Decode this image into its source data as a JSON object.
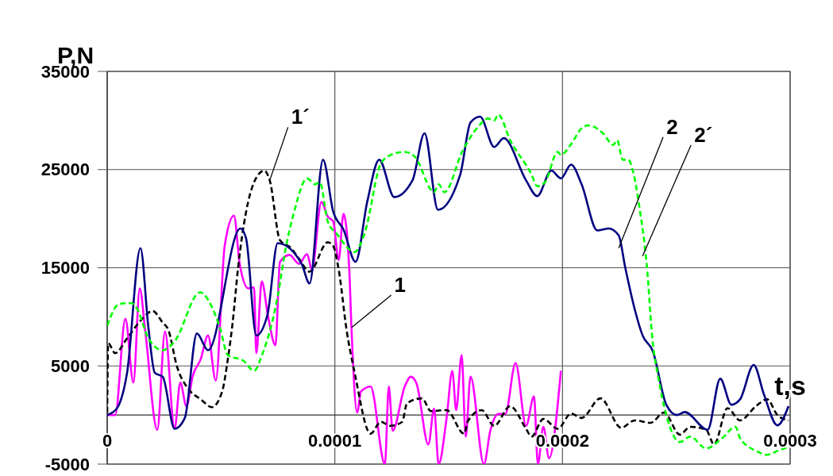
{
  "chart_data": {
    "type": "line",
    "xlabel": "t,s",
    "ylabel": "P,N",
    "xlim": [
      0,
      0.0003
    ],
    "ylim": [
      -5000,
      35000
    ],
    "xticks": [
      0,
      0.0001,
      0.0002,
      0.0003
    ],
    "yticks": [
      -5000,
      5000,
      15000,
      25000,
      35000
    ],
    "grid": true,
    "series": [
      {
        "color": "#ff00ff",
        "line_style": "solid",
        "x": [
          0,
          3.5e-06,
          8e-06,
          1.15e-05,
          1.43e-05,
          1.67e-05,
          2.2e-05,
          2.54e-05,
          2.96e-05,
          3.21e-05,
          3.48e-05,
          3.76e-05,
          4.11e-05,
          4.43e-05,
          4.77e-05,
          5.16e-05,
          5.57e-05,
          5.82e-05,
          6.2e-05,
          6.45e-05,
          6.55e-05,
          6.79e-05,
          7.07e-05,
          7.39e-05,
          7.59e-05,
          8.01e-05,
          8.43e-05,
          8.78e-05,
          8.99e-05,
          9.41e-05,
          9.69e-05,
          9.93e-05,
          0.0001017,
          0.0001038,
          0.0001063,
          0.0001073,
          0.0001098,
          0.0001115,
          0.0001157,
          0.000122,
          0.0001237,
          0.0001254,
          0.0001307,
          0.0001334,
          0.0001359,
          0.0001411,
          0.0001436,
          0.0001456,
          0.0001491,
          0.0001516,
          0.0001533,
          0.0001557,
          0.0001575,
          0.0001596,
          0.0001655,
          0.0001683,
          0.0001718,
          0.0001749,
          0.0001794,
          0.000184,
          0.0001875,
          0.0001892,
          0.0001916,
          0.0001941,
          0.0001993
        ],
        "values": [
          0,
          0,
          9800,
          3300,
          12900,
          8600,
          -1500,
          8500,
          -1400,
          3300,
          900,
          4000,
          5700,
          8100,
          3500,
          17200,
          20300,
          15400,
          12900,
          13000,
          6300,
          13600,
          10000,
          7100,
          15600,
          16300,
          15400,
          16400,
          14800,
          21700,
          20200,
          19700,
          15800,
          20500,
          15000,
          8900,
          250,
          2400,
          2900,
          -5000,
          2900,
          -1600,
          2900,
          3900,
          3200,
          -3000,
          650,
          -5000,
          -300,
          4500,
          500,
          6100,
          -2200,
          3900,
          -5000,
          -1600,
          100,
          100,
          5300,
          -1100,
          1900,
          -5000,
          -1200,
          -4400,
          4500
        ]
      },
      {
        "color": "#000000",
        "line_style": "dashed",
        "x": [
          0,
          4e-07,
          3.5e-06,
          8.7e-06,
          1.5e-05,
          1.99e-05,
          2.44e-05,
          2.68e-05,
          3.07e-05,
          3.55e-05,
          4.11e-05,
          4.6e-05,
          5.05e-05,
          5.3e-05,
          5.51e-05,
          5.75e-05,
          6.45e-05,
          6.9e-05,
          7.14e-05,
          7.59e-05,
          8.08e-05,
          8.43e-05,
          8.89e-05,
          9.69e-05,
          9.93e-05,
          0.0001017,
          0.0001052,
          0.0001087,
          0.0001157,
          0.0001202,
          0.0001244,
          0.0001296,
          0.0001317,
          0.0001383,
          0.0001422,
          0.0001491,
          0.0001568,
          0.0001585,
          0.0001645,
          0.00017,
          0.000177,
          0.000184,
          0.0001864,
          0.0001916,
          0.0001979,
          0.0002038,
          0.0002084,
          0.0002167,
          0.0002258,
          0.0002317,
          0.0002387,
          0.0002446,
          0.0002516,
          0.0002561,
          0.0002631,
          0.0002666,
          0.0002725,
          0.000278,
          0.000285,
          0.0002899,
          0.0002944,
          0.0002993
        ],
        "values": [
          250,
          7300,
          6300,
          7800,
          9700,
          10600,
          9400,
          8700,
          4900,
          2700,
          1600,
          800,
          2400,
          5700,
          9400,
          15000,
          23700,
          24900,
          23900,
          17800,
          17000,
          15900,
          14600,
          17600,
          17200,
          14800,
          8600,
          4300,
          -1900,
          -700,
          -1100,
          -700,
          1200,
          1700,
          400,
          500,
          -1900,
          -600,
          500,
          -1100,
          900,
          -1400,
          -2200,
          -400,
          -1400,
          150,
          -300,
          1700,
          -1300,
          -550,
          -800,
          250,
          -2000,
          -1200,
          -1500,
          -3000,
          700,
          -550,
          900,
          1600,
          0,
          -550
        ]
      },
      {
        "color": "#000080",
        "line_style": "solid",
        "x": [
          0,
          4.2e-06,
          8.7e-06,
          1.46e-05,
          1.81e-05,
          2.09e-05,
          2.44e-05,
          2.96e-05,
          3.41e-05,
          3.94e-05,
          4.43e-05,
          5.85e-05,
          6.1e-05,
          6.55e-05,
          7.04e-05,
          7.49e-05,
          8.54e-05,
          8.89e-05,
          9.48e-05,
          9.93e-05,
          0.0001038,
          0.0001091,
          0.0001143,
          0.0001195,
          0.0001261,
          0.0001341,
          0.0001394,
          0.0001453,
          0.0001551,
          0.0001596,
          0.0001638,
          0.00017,
          0.0001742,
          0.000184,
          0.0001889,
          0.0001951,
          0.0001993,
          0.0002038,
          0.0002084,
          0.0002153,
          0.0002202,
          0.0002247,
          0.0002275,
          0.0002317,
          0.0002352,
          0.0002397,
          0.0002456,
          0.0002502,
          0.0002537,
          0.0002638,
          0.0002693,
          0.0002742,
          0.000278,
          0.000284,
          0.0002885,
          0.0002944,
          0.0002993
        ],
        "values": [
          0,
          650,
          4250,
          17000,
          8900,
          4300,
          3900,
          -1400,
          -300,
          8300,
          6600,
          19000,
          18000,
          8100,
          10200,
          17500,
          15400,
          13400,
          26000,
          20700,
          18900,
          15600,
          21800,
          26000,
          22200,
          23900,
          28700,
          20900,
          24500,
          29800,
          30400,
          27300,
          28200,
          23900,
          22300,
          24900,
          24100,
          25500,
          23500,
          18800,
          19000,
          18300,
          15100,
          10800,
          8100,
          6500,
          1050,
          0,
          300,
          -1500,
          3700,
          1050,
          1600,
          5100,
          2100,
          -1050,
          900
        ]
      },
      {
        "color": "#00ff00",
        "line_style": "dashed",
        "x": [
          0,
          5.2e-06,
          1.05e-05,
          1.32e-05,
          1.81e-05,
          2.44e-05,
          2.96e-05,
          4.08e-05,
          4.6e-05,
          4.95e-05,
          5.3e-05,
          6e-05,
          6.45e-05,
          6.8e-05,
          7.49e-05,
          7.84e-05,
          8.19e-05,
          8.78e-05,
          9.13e-05,
          9.34e-05,
          9.69e-05,
          0.000101,
          0.0001087,
          0.0001132,
          0.0001202,
          0.0001247,
          0.0001307,
          0.0001352,
          0.0001436,
          0.0001456,
          0.0001481,
          0.0001561,
          0.0001631,
          0.0001672,
          0.00017,
          0.0001718,
          0.000177,
          0.0001864,
          0.0001889,
          0.0001923,
          0.0001979,
          0.0001993,
          0.0002038,
          0.0002084,
          0.0002115,
          0.0002178,
          0.0002223,
          0.000224,
          0.0002265,
          0.0002289,
          0.000231,
          0.0002341,
          0.0002369,
          0.0002397,
          0.0002422,
          0.0002456,
          0.0002516,
          0.0002561,
          0.0002631,
          0.00027,
          0.000276,
          0.000278,
          0.000285,
          0.0002899,
          0.0002955,
          0.0002993
        ],
        "values": [
          9100,
          11300,
          11400,
          10800,
          7800,
          6600,
          7500,
          12500,
          11000,
          8900,
          6100,
          5500,
          4500,
          6100,
          12100,
          17000,
          20500,
          24100,
          23500,
          23700,
          19700,
          18400,
          16600,
          18600,
          25600,
          26500,
          26800,
          26300,
          22700,
          23500,
          22700,
          26900,
          29400,
          30200,
          30000,
          30600,
          28000,
          24500,
          23300,
          23700,
          26800,
          26500,
          27600,
          29200,
          29500,
          28700,
          27500,
          28000,
          26000,
          26000,
          24800,
          20700,
          15600,
          7300,
          3700,
          0,
          -2750,
          -2200,
          -3400,
          -2400,
          -1200,
          -2350,
          -3650,
          -4050,
          -3550,
          -3250
        ]
      }
    ],
    "annotations": [
      {
        "text": "1´",
        "x": 7.14e-05,
        "y": 23900
      },
      {
        "text": "1",
        "x": 0.0001073,
        "y": 8900
      },
      {
        "text": "2",
        "x": 0.0002247,
        "y": 17000
      },
      {
        "text": "2´",
        "x": 0.0002352,
        "y": 16200
      }
    ]
  }
}
